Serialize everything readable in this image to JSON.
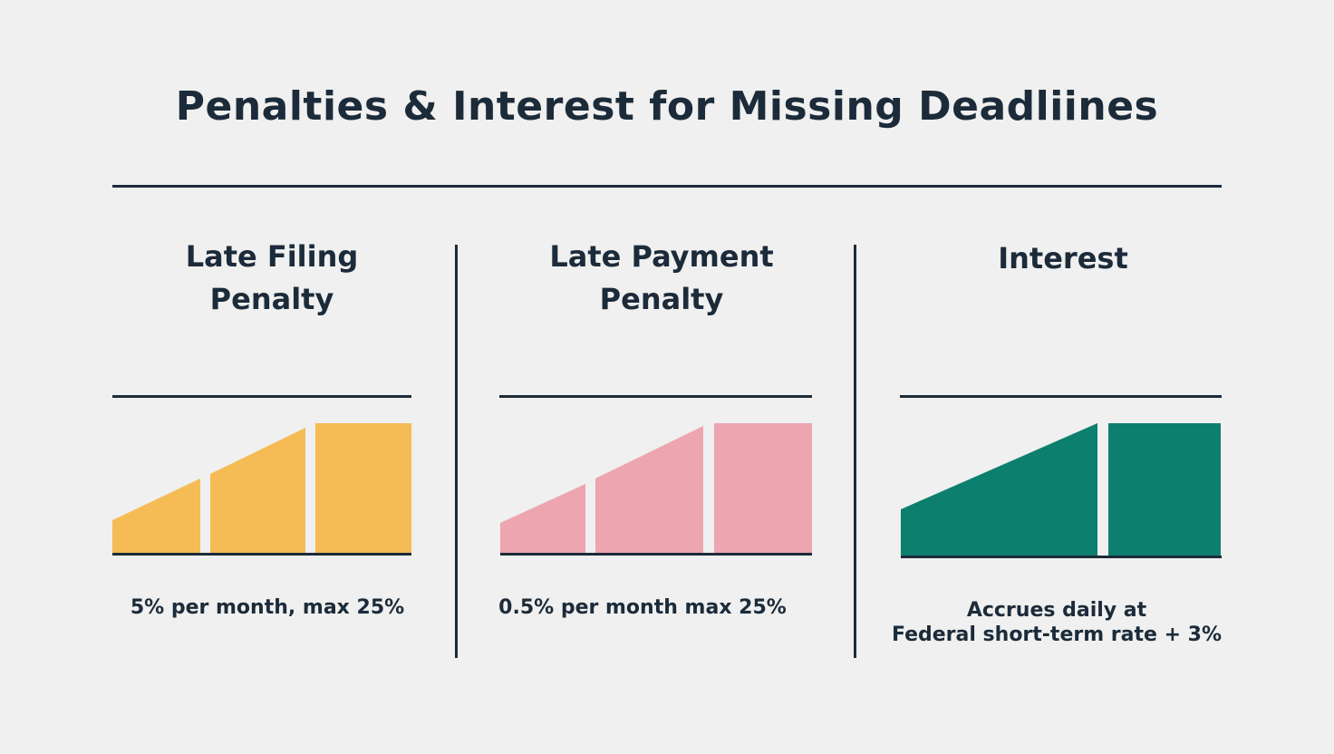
{
  "title": "Penalties & Interest for Missing Deadliines",
  "columns": [
    {
      "title_lines": [
        "Late Filing",
        "Penalty"
      ],
      "description_lines": [
        "5% per month, max 25%"
      ],
      "color": "#f5bb55"
    },
    {
      "title_lines": [
        "Late Payment",
        "Penalty"
      ],
      "description_lines": [
        "0.5% per month max 25%"
      ],
      "color": "#eda5b0"
    },
    {
      "title_lines": [
        "Interest"
      ],
      "description_lines": [
        "Accrues daily at",
        "Federal short-term rate + 3%"
      ],
      "color": "#0d7f6e"
    }
  ]
}
